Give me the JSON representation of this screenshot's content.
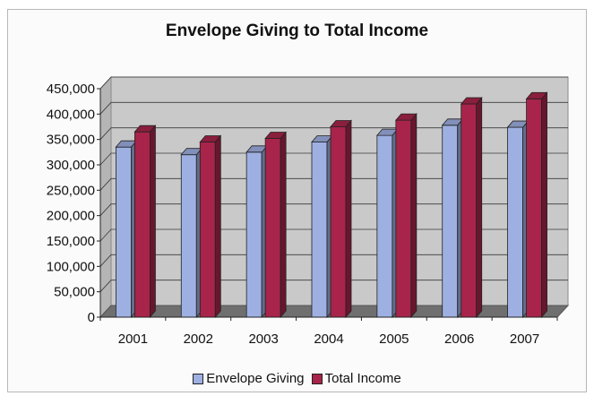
{
  "chart_data": {
    "type": "bar",
    "title": "Envelope Giving to Total Income",
    "categories": [
      "2001",
      "2002",
      "2003",
      "2004",
      "2005",
      "2006",
      "2007"
    ],
    "series": [
      {
        "name": "Envelope Giving",
        "color": "#9eb0e2",
        "values": [
          335000,
          320000,
          325000,
          345000,
          358000,
          378000,
          374000
        ]
      },
      {
        "name": "Total Income",
        "color": "#a8244a",
        "values": [
          365000,
          345000,
          352000,
          375000,
          388000,
          420000,
          430000
        ]
      }
    ],
    "ylim": [
      0,
      450000
    ],
    "yticks": [
      "0",
      "50,000",
      "100,000",
      "150,000",
      "200,000",
      "250,000",
      "300,000",
      "350,000",
      "400,000",
      "450,000"
    ],
    "grid": true,
    "legend_position": "bottom",
    "xlabel": "",
    "ylabel": ""
  }
}
